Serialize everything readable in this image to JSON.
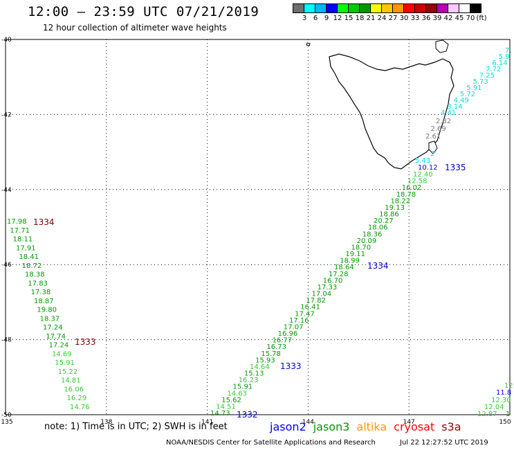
{
  "header": {
    "title": "12:00 – 23:59 UTC 07/21/2019",
    "subtitle": "12 hour collection of altimeter wave heights"
  },
  "colorbar": {
    "colors": [
      "#6e6e6e",
      "#00ffff",
      "#00b4ff",
      "#0000ff",
      "#00ff00",
      "#00c800",
      "#009600",
      "#ffff00",
      "#ffc800",
      "#ff9600",
      "#ff0000",
      "#c80000",
      "#960000",
      "#b400b4",
      "#ffc8ff",
      "#ffffff",
      "#000000"
    ],
    "labels": [
      "3",
      "6",
      "9",
      "12",
      "15",
      "18",
      "21",
      "24",
      "27",
      "30",
      "33",
      "36",
      "39",
      "42",
      "45",
      "70",
      "(ft)"
    ]
  },
  "map": {
    "lon_range": [
      135,
      150
    ],
    "lat_range": [
      -50,
      -40
    ],
    "lon_ticks": [
      "135",
      "138",
      "141",
      "144",
      "147",
      "150"
    ],
    "lat_ticks": [
      "-40",
      "-42",
      "-44",
      "-46",
      "-48",
      "-50"
    ],
    "colors": {
      "light_green": "#33cc33",
      "green": "#009900",
      "pale_green": "#66dd66",
      "cyan": "#00e0e0",
      "gray": "#777777",
      "blue": "#0000cc",
      "dark_red": "#7a0000"
    },
    "orbit_labels": [
      {
        "text": "1334",
        "color": "dark_red"
      },
      {
        "text": "1333",
        "color": "dark_red"
      },
      {
        "text": "1335",
        "color": "blue"
      },
      {
        "text": "1334",
        "color": "blue"
      },
      {
        "text": "1333",
        "color": "blue"
      },
      {
        "text": "1332",
        "color": "blue"
      }
    ],
    "track_a": [
      "17.98",
      "17.71",
      "18.11",
      "17.91",
      "18.41",
      "18.72",
      "18.38",
      "17.83",
      "17.38",
      "18.87",
      "19.80",
      "18.37",
      "17.24",
      "17.74",
      "17.24",
      "14.69",
      "15.91",
      "15.22",
      "14.81",
      "16.06",
      "16.29",
      "14.76"
    ],
    "track_b": [
      "12.40",
      "12.58",
      "16.02",
      "18.78",
      "18.22",
      "19.13",
      "18.86",
      "20.27",
      "18.06",
      "18.36",
      "20.09",
      "18.70",
      "19.11",
      "18.99",
      "18.64",
      "17.28",
      "16.70",
      "17.33",
      "17.04",
      "17.82",
      "16.41",
      "17.47",
      "17.16",
      "17.07",
      "16.96",
      "16.77",
      "16.73",
      "15.78",
      "15.93",
      "14.64",
      "15.13",
      "16.23",
      "15.91",
      "14.63",
      "15.62",
      "14.51",
      "14.73"
    ],
    "track_b_top": [
      "10.12",
      "5.43",
      "2"
    ],
    "track_c_cyan": [
      "7.",
      "5.9",
      "6.14",
      "7.72",
      "7.25",
      "5.73",
      "5.91",
      "5.72",
      "4.49",
      "3.14",
      "4.41"
    ],
    "track_c_gray": [
      "2.82",
      "2.69",
      "2.61"
    ],
    "track_d": [
      "12",
      "11.8",
      "12.30",
      "12.04",
      "12.87",
      "1"
    ]
  },
  "legend": {
    "note": "note:  1) Time is in UTC;  2) SWH is in feet",
    "satellites": [
      {
        "name": "jason2",
        "color": "#0000ff"
      },
      {
        "name": "jason3",
        "color": "#009600"
      },
      {
        "name": "altika",
        "color": "#ff9600"
      },
      {
        "name": "cryosat",
        "color": "#ff0000"
      },
      {
        "name": "s3a",
        "color": "#960000"
      }
    ]
  },
  "footer": {
    "credit": "NOAA/NESDIS Center for Satellite Applications and Research",
    "timestamp": "Jul 22 12:27:52 UTC 2019"
  }
}
